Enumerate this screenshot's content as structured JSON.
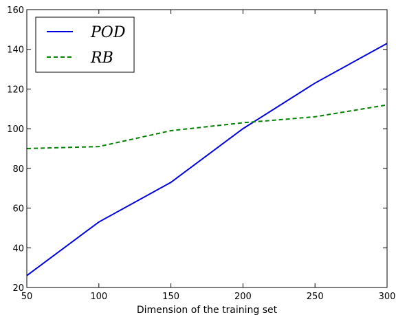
{
  "chart_data": {
    "type": "line",
    "title": "",
    "xlabel": "Dimension of the training set",
    "ylabel": "",
    "xlim": [
      50,
      300
    ],
    "ylim": [
      20,
      160
    ],
    "xticks": [
      "50",
      "100",
      "150",
      "200",
      "250",
      "300"
    ],
    "yticks": [
      "20",
      "40",
      "60",
      "80",
      "100",
      "120",
      "140",
      "160"
    ],
    "grid": false,
    "legend_position": "top-left",
    "series": [
      {
        "name": "POD",
        "color": "#0000dd",
        "style": "solid",
        "x": [
          50,
          100,
          150,
          200,
          250,
          300
        ],
        "y": [
          26,
          53,
          73,
          100,
          123,
          143
        ]
      },
      {
        "name": "RB",
        "color": "#008000",
        "style": "dashed",
        "x": [
          50,
          100,
          150,
          200,
          250,
          300
        ],
        "y": [
          90,
          91,
          99,
          103,
          106,
          112
        ]
      }
    ]
  }
}
